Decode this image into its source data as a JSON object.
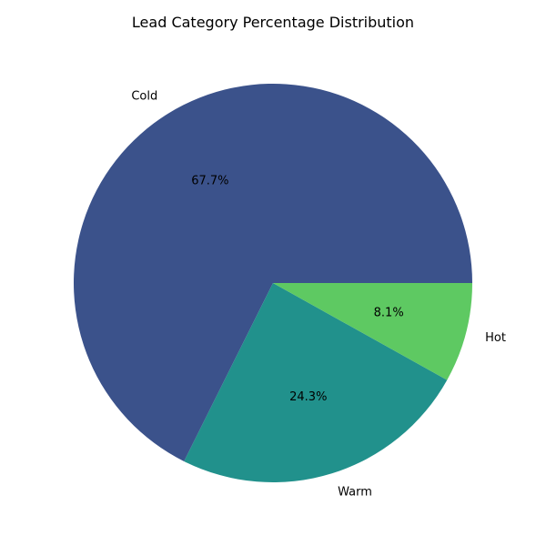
{
  "chart_data": {
    "type": "pie",
    "title": "Lead Category Percentage Distribution",
    "slices": [
      {
        "label": "Cold",
        "value": 67.7,
        "pct_label": "67.7%",
        "color": "#3b528b"
      },
      {
        "label": "Warm",
        "value": 24.3,
        "pct_label": "24.3%",
        "color": "#21918c"
      },
      {
        "label": "Hot",
        "value": 8.1,
        "pct_label": "8.1%",
        "color": "#5ec962"
      }
    ],
    "start_angle_deg": 0,
    "direction": "counterclockwise"
  }
}
